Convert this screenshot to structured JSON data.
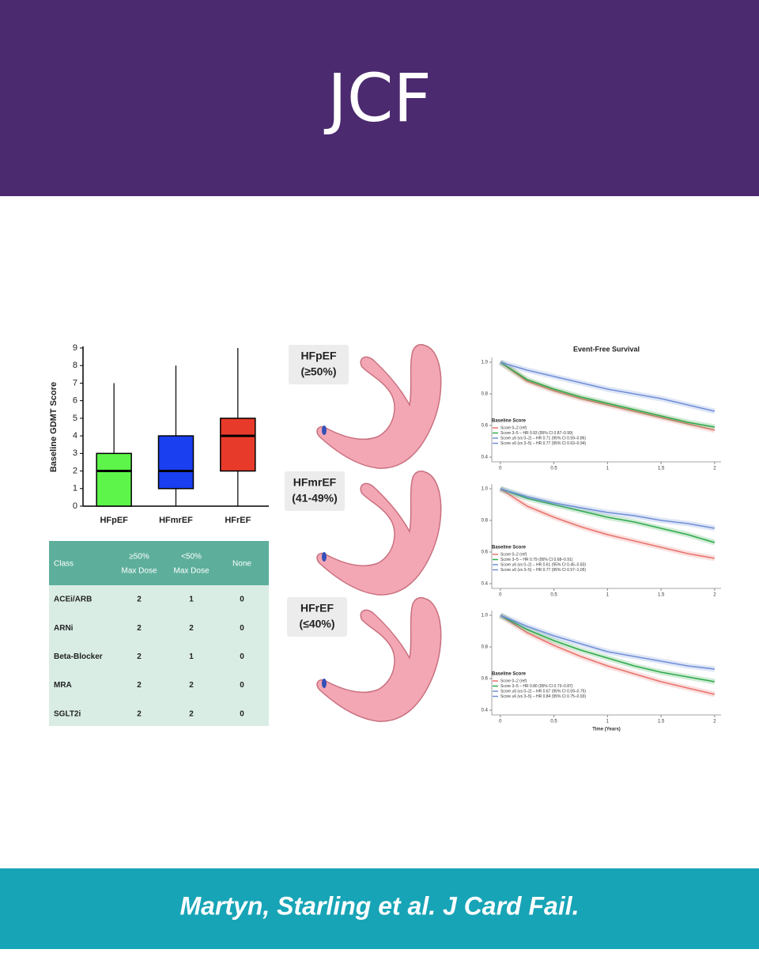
{
  "header": {
    "title": "JCF"
  },
  "footer": {
    "citation": "Martyn, Starling et al. J Card Fail."
  },
  "heart_labels": [
    [
      "HFpEF",
      "(≥50%)"
    ],
    [
      "HFmrEF",
      "(41-49%)"
    ],
    [
      "HFrEF",
      "(≤40%)"
    ]
  ],
  "table": {
    "header": [
      "Class",
      [
        "≥50%",
        "Max Dose"
      ],
      [
        "<50%",
        "Max Dose"
      ],
      "None"
    ],
    "rows": [
      [
        "ACEi/ARB",
        2,
        1,
        0
      ],
      [
        "ARNi",
        2,
        2,
        0
      ],
      [
        "Beta-Blocker",
        2,
        1,
        0
      ],
      [
        "MRA",
        2,
        2,
        0
      ],
      [
        "SGLT2i",
        2,
        2,
        0
      ]
    ]
  },
  "chart_data": [
    {
      "type": "box",
      "y_label": "Baseline GDMT Score",
      "categories": [
        "HFpEF",
        "HFmrEF",
        "HFrEF"
      ],
      "boxes": [
        {
          "color": "#5df54a",
          "min": 0,
          "q1": 0,
          "median": 2,
          "q3": 3,
          "max": 7
        },
        {
          "color": "#1a3ff0",
          "min": 0,
          "q1": 1,
          "median": 2,
          "q3": 4,
          "max": 8
        },
        {
          "color": "#e83a2a",
          "min": 0,
          "q1": 2,
          "median": 4,
          "q3": 5,
          "max": 9
        }
      ],
      "ylim": [
        0,
        9
      ],
      "yticks": [
        0,
        1,
        2,
        3,
        4,
        5,
        6,
        7,
        8,
        9
      ]
    },
    {
      "type": "line",
      "title": "Event-Free Survival",
      "legend_title": "Baseline Score",
      "x": [
        0,
        0.25,
        0.5,
        0.75,
        1,
        1.25,
        1.5,
        1.75,
        2
      ],
      "xlim": [
        -0.08,
        2.06
      ],
      "xticks": [
        0,
        0.5,
        1,
        1.5,
        2
      ],
      "ylim": [
        0.37,
        1.03
      ],
      "yticks": [
        0.4,
        0.6,
        0.8,
        {
          "value": 1,
          "label": "1.0"
        }
      ],
      "series": [
        {
          "name": "Score 0–2 (ref)",
          "color": "#e8736c",
          "values": [
            1,
            0.88,
            0.82,
            0.77,
            0.73,
            0.69,
            0.65,
            0.61,
            0.57
          ]
        },
        {
          "name": "Score 3–5 – HR 0.93 (95% CI 0.87–0.99)",
          "color": "#2eaa4a",
          "values": [
            1,
            0.89,
            0.83,
            0.78,
            0.74,
            0.7,
            0.66,
            0.62,
            0.59
          ]
        },
        {
          "name": "Score ≥6 (vs 0–2) – HR 0.71 (95% CI 0.59–0.86)",
          "color": "#6f8fd8",
          "values": [
            1,
            0.95,
            0.91,
            0.87,
            0.83,
            0.8,
            0.77,
            0.73,
            0.69
          ]
        }
      ],
      "additional_legend_entries": [
        "Score ≥6 (vs 3–5) – HR 0.77 (95% CI 0.63–0.94)"
      ]
    },
    {
      "type": "line",
      "legend_title": "Baseline Score",
      "x": [
        0,
        0.25,
        0.5,
        0.75,
        1,
        1.25,
        1.5,
        1.75,
        2
      ],
      "xlim": [
        -0.08,
        2.06
      ],
      "xticks": [
        0,
        0.5,
        1,
        1.5,
        2
      ],
      "ylim": [
        0.37,
        1.03
      ],
      "yticks": [
        0.4,
        0.6,
        0.8,
        {
          "value": 1,
          "label": "1.0"
        }
      ],
      "series": [
        {
          "name": "Score 0–2 (ref)",
          "color": "#e8736c",
          "values": [
            1,
            0.89,
            0.82,
            0.76,
            0.71,
            0.67,
            0.63,
            0.59,
            0.56
          ]
        },
        {
          "name": "Score 3–5 – HR 0.79 (95% CI 0.68–0.91)",
          "color": "#2eaa4a",
          "values": [
            1,
            0.94,
            0.9,
            0.86,
            0.82,
            0.79,
            0.75,
            0.71,
            0.66
          ]
        },
        {
          "name": "Score ≥6 (vs 0–2) – HR 0.61 (95% CI 0.45–0.83)",
          "color": "#6f8fd8",
          "values": [
            1,
            0.95,
            0.91,
            0.88,
            0.85,
            0.83,
            0.8,
            0.78,
            0.75
          ]
        }
      ],
      "additional_legend_entries": [
        "Score ≥6 (vs 3–5) – HR 0.77 (95% CI 0.57–1.05)"
      ]
    },
    {
      "type": "line",
      "legend_title": "Baseline Score",
      "x_label": "Time (Years)",
      "x": [
        0,
        0.25,
        0.5,
        0.75,
        1,
        1.25,
        1.5,
        1.75,
        2
      ],
      "xlim": [
        -0.08,
        2.06
      ],
      "xticks": [
        0,
        0.5,
        1,
        1.5,
        2
      ],
      "ylim": [
        0.37,
        1.03
      ],
      "yticks": [
        0.4,
        0.6,
        0.8,
        {
          "value": 1,
          "label": "1.0"
        }
      ],
      "series": [
        {
          "name": "Score 0–2 (ref)",
          "color": "#e8736c",
          "values": [
            1,
            0.89,
            0.81,
            0.74,
            0.68,
            0.63,
            0.58,
            0.54,
            0.5
          ]
        },
        {
          "name": "Score 3–5 – HR 0.80 (95% CI 0.73–0.87)",
          "color": "#2eaa4a",
          "values": [
            1,
            0.91,
            0.84,
            0.78,
            0.73,
            0.68,
            0.64,
            0.61,
            0.58
          ]
        },
        {
          "name": "Score ≥6 (vs 0–2) – HR 0.67 (95% CI 0.59–0.75)",
          "color": "#6f8fd8",
          "values": [
            1,
            0.93,
            0.87,
            0.82,
            0.77,
            0.74,
            0.71,
            0.68,
            0.66
          ]
        }
      ],
      "additional_legend_entries": [
        "Score ≥6 (vs 3–5) – HR 0.84 (95% CI 0.75–0.93)"
      ]
    }
  ]
}
